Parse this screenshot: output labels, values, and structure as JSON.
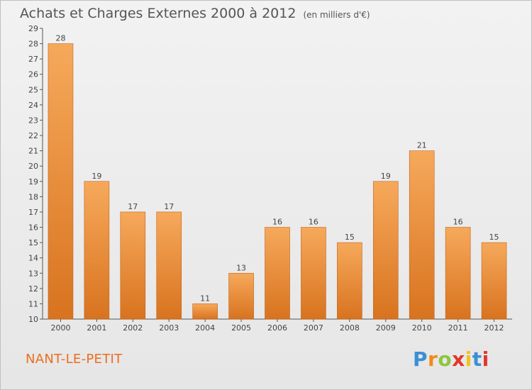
{
  "title": "Achats et Charges Externes 2000 à 2012",
  "subtitle": "(en milliers d'€)",
  "location": "NANT-LE-PETIT",
  "logo": {
    "text": "Proxiti",
    "letter_colors": [
      "#3a8fd8",
      "#f28a1a",
      "#8cc63f",
      "#e3362b",
      "#f2c21a",
      "#3a8fd8",
      "#e3362b"
    ]
  },
  "colors": {
    "bar_top": "#f6a95b",
    "bar_bottom": "#d8731f",
    "bar_edge": "#c2621a",
    "axis": "#555555",
    "label": "#444444",
    "location": "#ec6d1e"
  },
  "chart_data": {
    "type": "bar",
    "title": "Achats et Charges Externes 2000 à 2012",
    "subtitle": "(en milliers d'€)",
    "categories": [
      "2000",
      "2001",
      "2002",
      "2003",
      "2004",
      "2005",
      "2006",
      "2007",
      "2008",
      "2009",
      "2010",
      "2011",
      "2012"
    ],
    "values": [
      28,
      19,
      17,
      17,
      11,
      13,
      16,
      16,
      15,
      19,
      21,
      16,
      15
    ],
    "data_labels": true,
    "ylim": [
      10,
      29
    ],
    "yticks": [
      10,
      11,
      12,
      13,
      14,
      15,
      16,
      17,
      18,
      19,
      20,
      21,
      22,
      23,
      24,
      25,
      26,
      27,
      28,
      29
    ],
    "grid": false,
    "xlabel": "",
    "ylabel": ""
  }
}
